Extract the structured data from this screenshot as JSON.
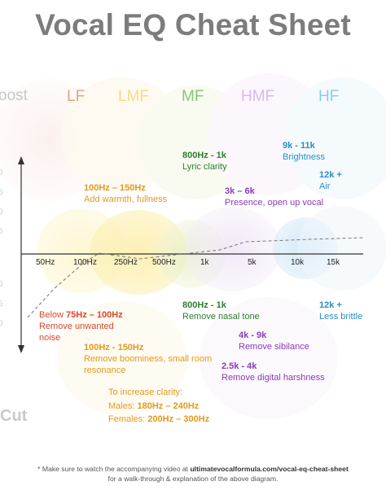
{
  "title": "Vocal EQ Cheat Sheet",
  "side_labels": {
    "boost": "oost",
    "cut": "Cut"
  },
  "bands": [
    {
      "label": "LF",
      "color": "#f39b84"
    },
    {
      "label": "LMF",
      "color": "#f5dc8a"
    },
    {
      "label": "MF",
      "color": "#8bc47c"
    },
    {
      "label": "HMF",
      "color": "#d9b8ee"
    },
    {
      "label": "HF",
      "color": "#8ccbea"
    }
  ],
  "y_axis_partial_labels": [
    "0",
    "5",
    "0",
    "5",
    "0",
    "5",
    "0"
  ],
  "x_ticks": [
    "50Hz",
    "100Hz",
    "250Hz",
    "500Hz",
    "1k",
    "5k",
    "10k",
    "15k"
  ],
  "boost_notes": {
    "mid_800_1k": {
      "range": "800Hz - 1k",
      "text": "Lyric clarity"
    },
    "hf_9k_11k": {
      "range": "9k - 11k",
      "text": "Brightness"
    },
    "hf_12k": {
      "range": "12k +",
      "text": "Air"
    },
    "lmf_100_150": {
      "range": "100Hz – 150Hz",
      "text": "Add warmth, fullness"
    },
    "hmf_3k_6k": {
      "range": "3k – 6k",
      "text": "Presence, open up vocal"
    }
  },
  "cut_notes": {
    "lf_below": {
      "prefix": "Below",
      "range": "75Hz – 100Hz",
      "line2": "Remove unwanted",
      "line3": "noise"
    },
    "mid_800_1k": {
      "range": "800Hz - 1k",
      "text": "Remove nasal tone"
    },
    "hf_12k": {
      "range": "12k +",
      "text": "Less brittle"
    },
    "hmf_4k_9k": {
      "range": "4k - 9k",
      "text": "Remove sibilance"
    },
    "lmf_100_150": {
      "range": "100Hz - 150Hz",
      "line2": "Remove boominess, small room",
      "line3": "resonance"
    },
    "hmf_2_5k_4k": {
      "range": "2.5k - 4k",
      "text": "Remove digital harshness"
    },
    "clarity": {
      "intro": "To increase clarity:",
      "males_label": "Males:",
      "males_range": "180Hz – 240Hz",
      "females_label": "Females:",
      "females_range": "200Hz – 300Hz"
    }
  },
  "footer": {
    "line1_prefix": "* Make sure to watch the accompanying video at",
    "url": "ultimatevocalformula.com/vocal-eq-cheat-sheet",
    "line2": "for a walk-through & explanation of the above diagram."
  }
}
